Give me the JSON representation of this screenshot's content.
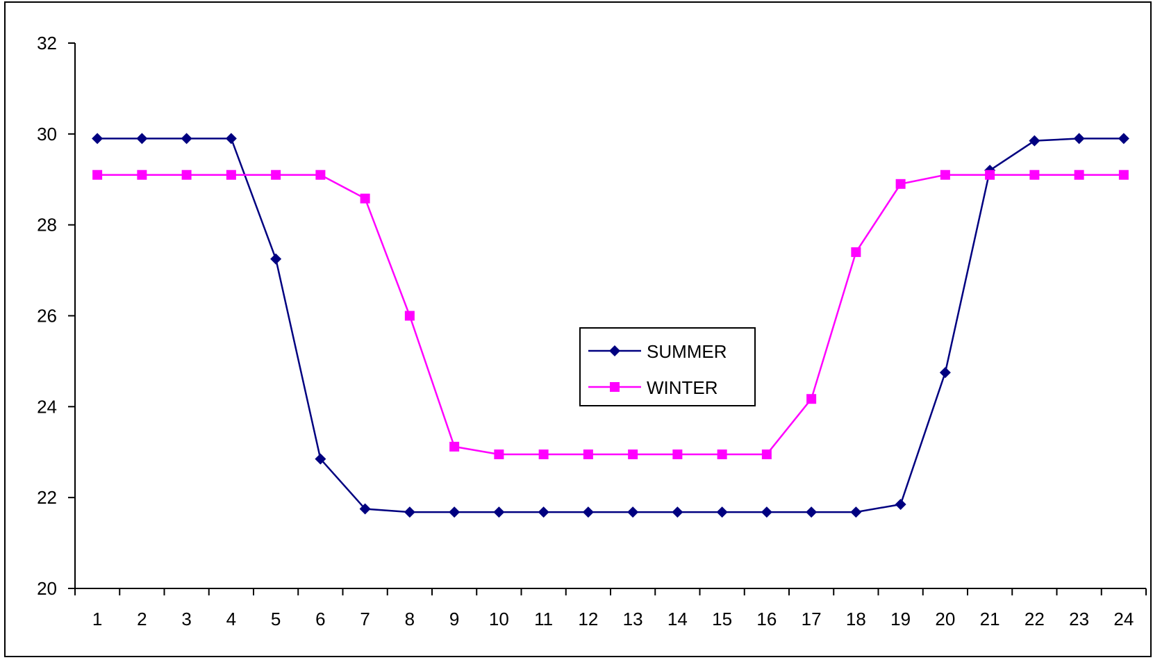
{
  "chart_data": {
    "type": "line",
    "title": "",
    "xlabel": "",
    "ylabel": "",
    "categories": [
      "1",
      "2",
      "3",
      "4",
      "5",
      "6",
      "7",
      "8",
      "9",
      "10",
      "11",
      "12",
      "13",
      "14",
      "15",
      "16",
      "17",
      "18",
      "19",
      "20",
      "21",
      "22",
      "23",
      "24"
    ],
    "ylim": [
      20,
      32
    ],
    "yticks": [
      "20",
      "22",
      "24",
      "26",
      "28",
      "30",
      "32"
    ],
    "grid": false,
    "legend_position": "center",
    "series": [
      {
        "name": "SUMMER",
        "color": "#000080",
        "marker": "diamond",
        "values": [
          29.9,
          29.9,
          29.9,
          29.9,
          27.25,
          22.85,
          21.75,
          21.68,
          21.68,
          21.68,
          21.68,
          21.68,
          21.68,
          21.68,
          21.68,
          21.68,
          21.68,
          21.68,
          21.85,
          24.75,
          29.2,
          29.85,
          29.9,
          29.9
        ]
      },
      {
        "name": "WINTER",
        "color": "#ff00ff",
        "marker": "square",
        "values": [
          29.1,
          29.1,
          29.1,
          29.1,
          29.1,
          29.1,
          28.58,
          26.0,
          23.12,
          22.95,
          22.95,
          22.95,
          22.95,
          22.95,
          22.95,
          22.95,
          24.17,
          27.4,
          28.9,
          29.1,
          29.1,
          29.1,
          29.1,
          29.1
        ]
      }
    ]
  }
}
